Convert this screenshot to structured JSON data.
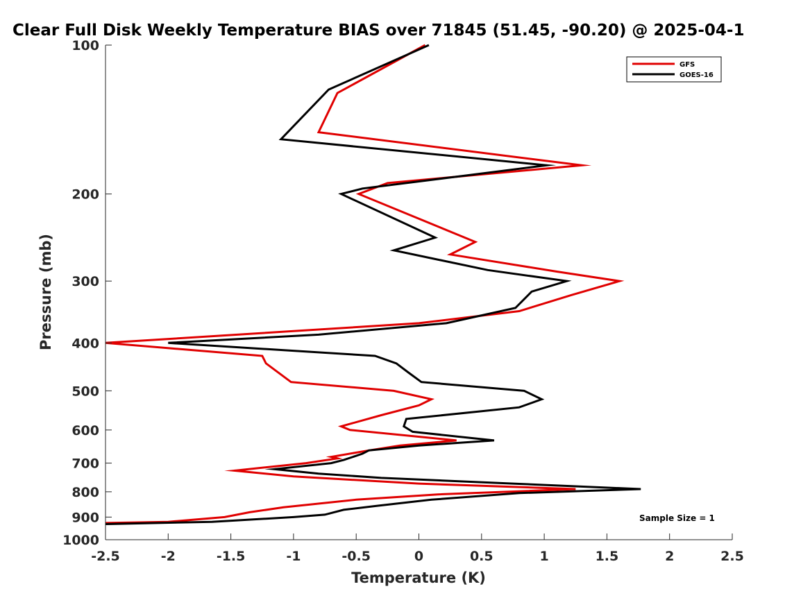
{
  "chart_data": {
    "type": "line",
    "title": "Clear Full Disk Weekly Temperature BIAS over 71845 (51.45, -90.20) @ 2025-04-1",
    "xlabel": "Temperature (K)",
    "ylabel": "Pressure (mb)",
    "xlim": [
      -2.5,
      2.5
    ],
    "ylim": [
      100,
      1000
    ],
    "yscale": "log",
    "xticks": [
      -2.5,
      -2,
      -1.5,
      -1,
      -0.5,
      0,
      0.5,
      1,
      1.5,
      2,
      2.5
    ],
    "xtick_labels": [
      "-2.5",
      "-2",
      "-1.5",
      "-1",
      "-0.5",
      "0",
      "0.5",
      "1",
      "1.5",
      "2",
      "2.5"
    ],
    "yticks": [
      100,
      200,
      300,
      400,
      500,
      600,
      700,
      800,
      900,
      1000
    ],
    "ytick_labels": [
      "100",
      "200",
      "300",
      "400",
      "500",
      "600",
      "700",
      "800",
      "900",
      "1000"
    ],
    "legend_position": "top-right",
    "annotation": "Sample Size = 1",
    "series": [
      {
        "name": "GFS",
        "color": "#e00000",
        "points": [
          [
            0.05,
            100
          ],
          [
            -0.65,
            125
          ],
          [
            -0.8,
            150
          ],
          [
            1.3,
            175
          ],
          [
            -0.25,
            190
          ],
          [
            -0.48,
            200
          ],
          [
            0.45,
            250
          ],
          [
            0.25,
            265
          ],
          [
            1.1,
            287
          ],
          [
            1.6,
            300
          ],
          [
            1.22,
            320
          ],
          [
            0.8,
            345
          ],
          [
            0.0,
            365
          ],
          [
            -2.5,
            400
          ],
          [
            -1.25,
            425
          ],
          [
            -1.22,
            440
          ],
          [
            -1.02,
            480
          ],
          [
            -0.2,
            500
          ],
          [
            0.1,
            520
          ],
          [
            0.0,
            535
          ],
          [
            -0.3,
            560
          ],
          [
            -0.62,
            590
          ],
          [
            -0.55,
            600
          ],
          [
            0.3,
            630
          ],
          [
            -0.15,
            645
          ],
          [
            -0.4,
            660
          ],
          [
            -0.7,
            680
          ],
          [
            -0.65,
            685
          ],
          [
            -0.9,
            700
          ],
          [
            -1.47,
            725
          ],
          [
            -1.0,
            745
          ],
          [
            0.0,
            770
          ],
          [
            1.25,
            790
          ],
          [
            0.15,
            810
          ],
          [
            -0.5,
            830
          ],
          [
            -1.08,
            860
          ],
          [
            -1.35,
            880
          ],
          [
            -1.55,
            900
          ],
          [
            -2.0,
            920
          ],
          [
            -2.5,
            925
          ]
        ]
      },
      {
        "name": "GOES-16",
        "color": "#000000",
        "points": [
          [
            0.08,
            100
          ],
          [
            -0.72,
            123
          ],
          [
            -1.1,
            155
          ],
          [
            1.02,
            175
          ],
          [
            -0.45,
            195
          ],
          [
            -0.62,
            200
          ],
          [
            0.13,
            245
          ],
          [
            -0.2,
            260
          ],
          [
            0.55,
            285
          ],
          [
            1.18,
            300
          ],
          [
            0.9,
            315
          ],
          [
            0.77,
            340
          ],
          [
            0.22,
            365
          ],
          [
            -0.8,
            385
          ],
          [
            -2.0,
            400
          ],
          [
            -0.35,
            425
          ],
          [
            -0.18,
            440
          ],
          [
            -0.08,
            460
          ],
          [
            0.02,
            480
          ],
          [
            0.84,
            500
          ],
          [
            0.98,
            520
          ],
          [
            0.8,
            540
          ],
          [
            -0.1,
            570
          ],
          [
            -0.12,
            590
          ],
          [
            -0.05,
            605
          ],
          [
            0.6,
            630
          ],
          [
            0.0,
            645
          ],
          [
            -0.4,
            660
          ],
          [
            -0.45,
            670
          ],
          [
            -0.6,
            690
          ],
          [
            -0.7,
            700
          ],
          [
            -1.15,
            720
          ],
          [
            -0.8,
            735
          ],
          [
            -0.3,
            750
          ],
          [
            0.75,
            770
          ],
          [
            1.77,
            790
          ],
          [
            0.8,
            805
          ],
          [
            0.1,
            830
          ],
          [
            -0.35,
            855
          ],
          [
            -0.6,
            870
          ],
          [
            -0.75,
            890
          ],
          [
            -1.0,
            900
          ],
          [
            -1.65,
            920
          ],
          [
            -2.5,
            930
          ]
        ]
      }
    ]
  }
}
